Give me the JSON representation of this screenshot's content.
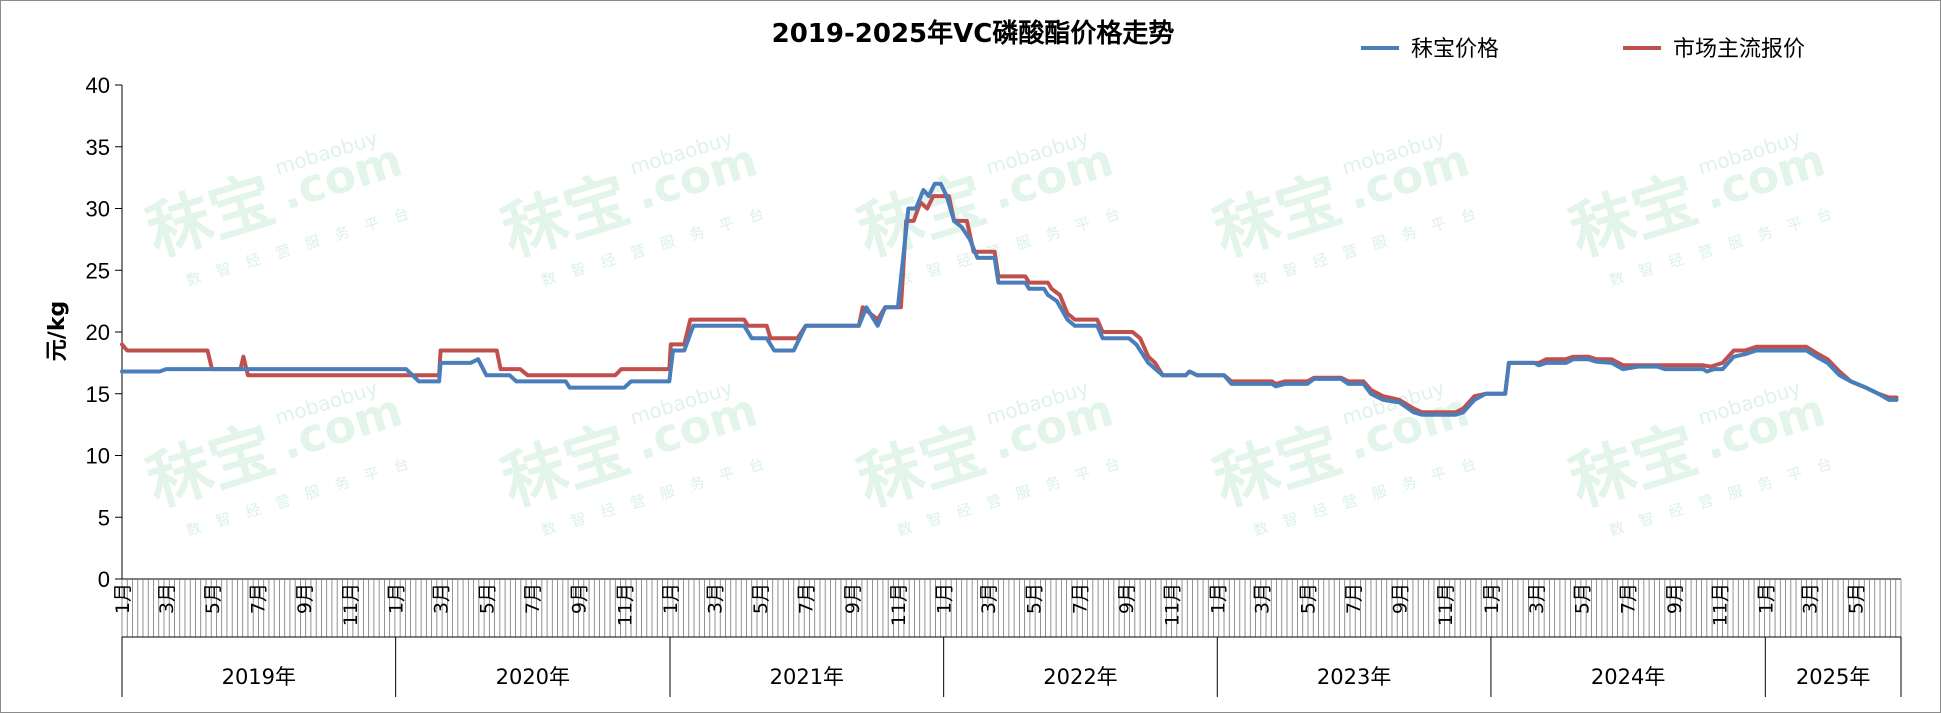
{
  "chart_data": {
    "type": "line",
    "title": "2019-2025年VC磷酸酯价格走势",
    "ylabel": "元/kg",
    "ylim": [
      0,
      40
    ],
    "yticks": [
      0,
      5,
      10,
      15,
      20,
      25,
      30,
      35,
      40
    ],
    "legend_position": "top-right",
    "grid": false,
    "x_start": "2019-01",
    "x_end": "2025-06",
    "month_tick_labels": [
      "1月",
      "3月",
      "5月",
      "7月",
      "9月",
      "11月"
    ],
    "month_tick_labels_2025": [
      "1月",
      "3月",
      "5月"
    ],
    "year_labels": [
      "2019年",
      "2020年",
      "2021年",
      "2022年",
      "2023年",
      "2024年",
      "2025年"
    ],
    "series": [
      {
        "name": "秣宝价格",
        "color": "#4a7ebb",
        "points": [
          [
            "2019-01-01",
            16.8
          ],
          [
            "2019-02-20",
            16.8
          ],
          [
            "2019-03-01",
            17.0
          ],
          [
            "2019-04-15",
            17.0
          ],
          [
            "2019-05-15",
            17.0
          ],
          [
            "2019-06-01",
            17.0
          ],
          [
            "2019-09-01",
            17.0
          ],
          [
            "2019-12-31",
            17.0
          ],
          [
            "2020-01-15",
            17.0
          ],
          [
            "2020-02-01",
            16.0
          ],
          [
            "2020-02-28",
            16.0
          ],
          [
            "2020-03-01",
            17.5
          ],
          [
            "2020-04-10",
            17.5
          ],
          [
            "2020-04-20",
            17.8
          ],
          [
            "2020-05-01",
            16.5
          ],
          [
            "2020-06-01",
            16.5
          ],
          [
            "2020-06-10",
            16.0
          ],
          [
            "2020-08-15",
            16.0
          ],
          [
            "2020-08-20",
            15.5
          ],
          [
            "2020-11-01",
            15.5
          ],
          [
            "2020-11-10",
            16.0
          ],
          [
            "2020-12-31",
            16.0
          ],
          [
            "2021-01-05",
            18.5
          ],
          [
            "2021-01-20",
            18.5
          ],
          [
            "2021-02-01",
            20.5
          ],
          [
            "2021-04-10",
            20.5
          ],
          [
            "2021-04-20",
            19.5
          ],
          [
            "2021-05-10",
            19.5
          ],
          [
            "2021-05-20",
            18.5
          ],
          [
            "2021-06-15",
            18.5
          ],
          [
            "2021-07-01",
            20.5
          ],
          [
            "2021-09-10",
            20.5
          ],
          [
            "2021-09-20",
            22.0
          ],
          [
            "2021-10-05",
            20.5
          ],
          [
            "2021-10-15",
            22.0
          ],
          [
            "2021-11-01",
            22.0
          ],
          [
            "2021-11-15",
            30.0
          ],
          [
            "2021-11-25",
            30.0
          ],
          [
            "2021-12-05",
            31.5
          ],
          [
            "2021-12-12",
            31.0
          ],
          [
            "2021-12-20",
            32.0
          ],
          [
            "2021-12-28",
            32.0
          ],
          [
            "2022-01-05",
            31.0
          ],
          [
            "2022-01-15",
            29.0
          ],
          [
            "2022-01-25",
            28.5
          ],
          [
            "2022-02-05",
            27.5
          ],
          [
            "2022-02-15",
            26.0
          ],
          [
            "2022-03-10",
            26.0
          ],
          [
            "2022-03-15",
            24.0
          ],
          [
            "2022-04-20",
            24.0
          ],
          [
            "2022-04-25",
            23.5
          ],
          [
            "2022-05-15",
            23.5
          ],
          [
            "2022-05-20",
            23.0
          ],
          [
            "2022-06-01",
            22.5
          ],
          [
            "2022-06-15",
            21.0
          ],
          [
            "2022-06-25",
            20.5
          ],
          [
            "2022-07-25",
            20.5
          ],
          [
            "2022-08-01",
            19.5
          ],
          [
            "2022-09-05",
            19.5
          ],
          [
            "2022-09-15",
            19.0
          ],
          [
            "2022-10-01",
            17.5
          ],
          [
            "2022-10-20",
            16.5
          ],
          [
            "2022-11-20",
            16.5
          ],
          [
            "2022-11-25",
            16.8
          ],
          [
            "2022-12-05",
            16.5
          ],
          [
            "2023-01-10",
            16.5
          ],
          [
            "2023-01-20",
            15.8
          ],
          [
            "2023-03-15",
            15.8
          ],
          [
            "2023-03-20",
            15.6
          ],
          [
            "2023-04-01",
            15.8
          ],
          [
            "2023-05-01",
            15.8
          ],
          [
            "2023-05-10",
            16.2
          ],
          [
            "2023-06-15",
            16.2
          ],
          [
            "2023-06-25",
            15.8
          ],
          [
            "2023-07-15",
            15.8
          ],
          [
            "2023-07-25",
            15.0
          ],
          [
            "2023-08-10",
            14.5
          ],
          [
            "2023-09-01",
            14.3
          ],
          [
            "2023-09-20",
            13.5
          ],
          [
            "2023-10-01",
            13.3
          ],
          [
            "2023-11-15",
            13.3
          ],
          [
            "2023-11-25",
            13.5
          ],
          [
            "2023-12-10",
            14.5
          ],
          [
            "2023-12-25",
            15.0
          ],
          [
            "2024-01-20",
            15.0
          ],
          [
            "2024-01-25",
            17.5
          ],
          [
            "2024-02-28",
            17.5
          ],
          [
            "2024-03-05",
            17.3
          ],
          [
            "2024-03-15",
            17.5
          ],
          [
            "2024-04-10",
            17.5
          ],
          [
            "2024-04-20",
            17.8
          ],
          [
            "2024-05-10",
            17.8
          ],
          [
            "2024-05-20",
            17.6
          ],
          [
            "2024-06-10",
            17.5
          ],
          [
            "2024-06-25",
            17.0
          ],
          [
            "2024-07-15",
            17.2
          ],
          [
            "2024-08-10",
            17.2
          ],
          [
            "2024-08-20",
            17.0
          ],
          [
            "2024-10-10",
            17.0
          ],
          [
            "2024-10-15",
            16.8
          ],
          [
            "2024-10-25",
            17.0
          ],
          [
            "2024-11-05",
            17.0
          ],
          [
            "2024-11-20",
            18.0
          ],
          [
            "2024-12-05",
            18.2
          ],
          [
            "2024-12-20",
            18.5
          ],
          [
            "2025-02-25",
            18.5
          ],
          [
            "2025-03-10",
            18.0
          ],
          [
            "2025-03-25",
            17.5
          ],
          [
            "2025-04-10",
            16.5
          ],
          [
            "2025-04-25",
            16.0
          ],
          [
            "2025-05-15",
            15.5
          ],
          [
            "2025-06-01",
            15.0
          ],
          [
            "2025-06-15",
            14.5
          ],
          [
            "2025-06-25",
            14.5
          ]
        ]
      },
      {
        "name": "市场主流报价",
        "color": "#c0504d",
        "points": [
          [
            "2019-01-01",
            19.0
          ],
          [
            "2019-01-08",
            18.5
          ],
          [
            "2019-04-25",
            18.5
          ],
          [
            "2019-05-01",
            17.0
          ],
          [
            "2019-06-08",
            17.0
          ],
          [
            "2019-06-12",
            18.0
          ],
          [
            "2019-06-18",
            16.5
          ],
          [
            "2019-10-01",
            16.5
          ],
          [
            "2020-02-01",
            16.5
          ],
          [
            "2020-02-28",
            16.5
          ],
          [
            "2020-03-01",
            18.5
          ],
          [
            "2020-05-15",
            18.5
          ],
          [
            "2020-05-20",
            17.0
          ],
          [
            "2020-06-15",
            17.0
          ],
          [
            "2020-06-25",
            16.5
          ],
          [
            "2020-10-20",
            16.5
          ],
          [
            "2020-10-28",
            17.0
          ],
          [
            "2020-12-31",
            17.0
          ],
          [
            "2021-01-02",
            19.0
          ],
          [
            "2021-01-20",
            19.0
          ],
          [
            "2021-01-28",
            21.0
          ],
          [
            "2021-04-10",
            21.0
          ],
          [
            "2021-04-15",
            20.5
          ],
          [
            "2021-05-10",
            20.5
          ],
          [
            "2021-05-15",
            19.5
          ],
          [
            "2021-06-20",
            19.5
          ],
          [
            "2021-07-01",
            20.5
          ],
          [
            "2021-09-10",
            20.5
          ],
          [
            "2021-09-15",
            22.0
          ],
          [
            "2021-09-25",
            21.5
          ],
          [
            "2021-10-05",
            21.0
          ],
          [
            "2021-10-15",
            22.0
          ],
          [
            "2021-11-05",
            22.0
          ],
          [
            "2021-11-12",
            29.0
          ],
          [
            "2021-11-22",
            29.0
          ],
          [
            "2021-12-01",
            30.5
          ],
          [
            "2021-12-10",
            30.0
          ],
          [
            "2021-12-18",
            31.0
          ],
          [
            "2022-01-08",
            31.0
          ],
          [
            "2022-01-15",
            29.0
          ],
          [
            "2022-02-01",
            29.0
          ],
          [
            "2022-02-10",
            26.5
          ],
          [
            "2022-03-10",
            26.5
          ],
          [
            "2022-03-15",
            24.5
          ],
          [
            "2022-04-20",
            24.5
          ],
          [
            "2022-04-25",
            24.0
          ],
          [
            "2022-05-20",
            24.0
          ],
          [
            "2022-05-25",
            23.5
          ],
          [
            "2022-06-05",
            23.0
          ],
          [
            "2022-06-15",
            21.5
          ],
          [
            "2022-06-25",
            21.0
          ],
          [
            "2022-07-25",
            21.0
          ],
          [
            "2022-08-01",
            20.0
          ],
          [
            "2022-09-10",
            20.0
          ],
          [
            "2022-09-20",
            19.5
          ],
          [
            "2022-10-01",
            18.0
          ],
          [
            "2022-10-10",
            17.5
          ],
          [
            "2022-10-20",
            16.5
          ],
          [
            "2022-11-20",
            16.5
          ],
          [
            "2022-11-25",
            16.8
          ],
          [
            "2022-12-05",
            16.5
          ],
          [
            "2023-01-10",
            16.5
          ],
          [
            "2023-01-20",
            16.0
          ],
          [
            "2023-03-15",
            16.0
          ],
          [
            "2023-03-20",
            15.8
          ],
          [
            "2023-04-01",
            16.0
          ],
          [
            "2023-05-01",
            16.0
          ],
          [
            "2023-05-10",
            16.3
          ],
          [
            "2023-06-15",
            16.3
          ],
          [
            "2023-06-25",
            16.0
          ],
          [
            "2023-07-15",
            16.0
          ],
          [
            "2023-07-25",
            15.3
          ],
          [
            "2023-08-10",
            14.8
          ],
          [
            "2023-09-01",
            14.5
          ],
          [
            "2023-09-20",
            13.8
          ],
          [
            "2023-10-01",
            13.5
          ],
          [
            "2023-11-15",
            13.5
          ],
          [
            "2023-11-25",
            13.8
          ],
          [
            "2023-12-10",
            14.8
          ],
          [
            "2023-12-25",
            15.0
          ],
          [
            "2024-01-20",
            15.0
          ],
          [
            "2024-01-25",
            17.5
          ],
          [
            "2024-02-28",
            17.5
          ],
          [
            "2024-03-05",
            17.5
          ],
          [
            "2024-03-15",
            17.8
          ],
          [
            "2024-04-10",
            17.8
          ],
          [
            "2024-04-20",
            18.0
          ],
          [
            "2024-05-10",
            18.0
          ],
          [
            "2024-05-20",
            17.8
          ],
          [
            "2024-06-10",
            17.8
          ],
          [
            "2024-06-25",
            17.3
          ],
          [
            "2024-07-15",
            17.3
          ],
          [
            "2024-10-10",
            17.3
          ],
          [
            "2024-10-20",
            17.2
          ],
          [
            "2024-11-05",
            17.5
          ],
          [
            "2024-11-20",
            18.5
          ],
          [
            "2024-12-05",
            18.5
          ],
          [
            "2024-12-20",
            18.8
          ],
          [
            "2025-02-25",
            18.8
          ],
          [
            "2025-03-10",
            18.3
          ],
          [
            "2025-03-25",
            17.8
          ],
          [
            "2025-04-10",
            16.8
          ],
          [
            "2025-04-25",
            16.0
          ],
          [
            "2025-05-15",
            15.5
          ],
          [
            "2025-06-01",
            15.0
          ],
          [
            "2025-06-15",
            14.7
          ],
          [
            "2025-06-25",
            14.7
          ]
        ]
      }
    ]
  },
  "watermark": {
    "logo": "秣宝",
    "url": "mobaobuy",
    "domain": ".com",
    "tagline": "数智经营服务平台"
  }
}
